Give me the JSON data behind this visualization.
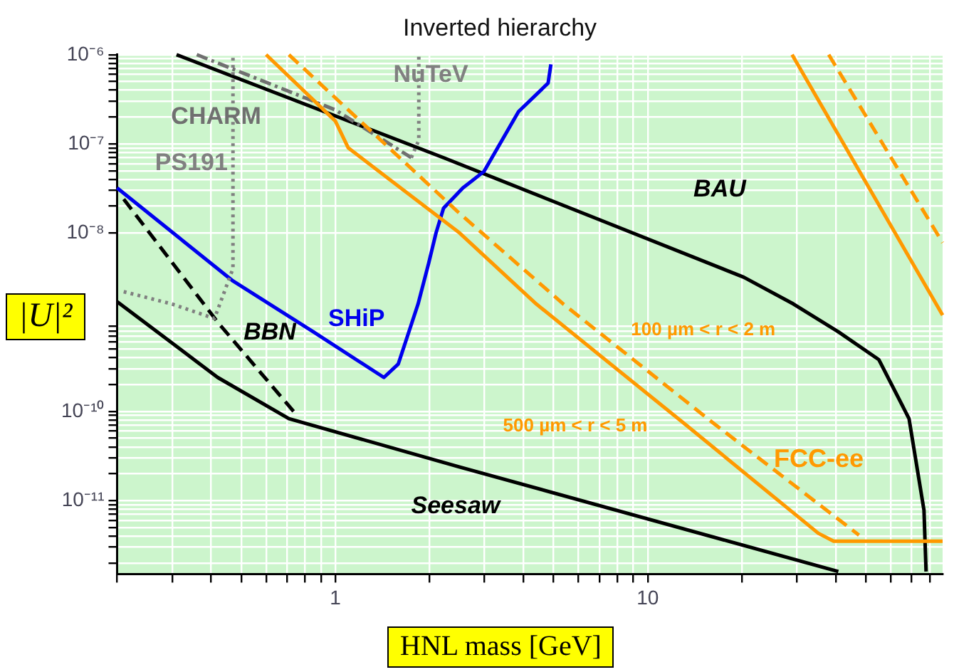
{
  "chart_data": {
    "type": "line",
    "title": "Inverted hierarchy",
    "xlabel": "HNL mass [GeV]",
    "ylabel": "|U|²",
    "log": "xy",
    "grid": true,
    "legend": false,
    "marker": "none",
    "xlim": [
      0.2,
      88
    ],
    "ylim": [
      1.5e-12,
      1e-06
    ],
    "xticks": [
      {
        "value": 0.2,
        "label": null
      },
      {
        "value": 0.3,
        "label": null
      },
      {
        "value": 0.4,
        "label": null
      },
      {
        "value": 0.5,
        "label": null
      },
      {
        "value": 0.6,
        "label": null
      },
      {
        "value": 0.7,
        "label": null
      },
      {
        "value": 0.8,
        "label": null
      },
      {
        "value": 0.9,
        "label": null
      },
      1,
      {
        "value": 2,
        "label": null
      },
      {
        "value": 3,
        "label": null
      },
      {
        "value": 4,
        "label": null
      },
      {
        "value": 5,
        "label": null
      },
      {
        "value": 6,
        "label": null
      },
      {
        "value": 7,
        "label": null
      },
      {
        "value": 8,
        "label": null
      },
      {
        "value": 9,
        "label": null
      },
      10,
      {
        "value": 20,
        "label": null
      },
      {
        "value": 30,
        "label": null
      },
      {
        "value": 40,
        "label": null
      },
      {
        "value": 50,
        "label": null
      },
      {
        "value": 60,
        "label": null
      },
      {
        "value": 70,
        "label": null
      },
      {
        "value": 80,
        "label": null
      }
    ],
    "yticks": [
      {
        "value": 2e-12,
        "label": null
      },
      {
        "value": 3e-12,
        "label": null
      },
      {
        "value": 4e-12,
        "label": null
      },
      {
        "value": 5e-12,
        "label": null
      },
      {
        "value": 6e-12,
        "label": null
      },
      {
        "value": 7e-12,
        "label": null
      },
      {
        "value": 8e-12,
        "label": null
      },
      {
        "value": 9e-12,
        "label": null
      },
      {
        "value": 1e-11,
        "label": "10⁻¹¹"
      },
      {
        "value": 2e-11,
        "label": null
      },
      {
        "value": 3e-11,
        "label": null
      },
      {
        "value": 4e-11,
        "label": null
      },
      {
        "value": 5e-11,
        "label": null
      },
      {
        "value": 6e-11,
        "label": null
      },
      {
        "value": 7e-11,
        "label": null
      },
      {
        "value": 8e-11,
        "label": null
      },
      {
        "value": 9e-11,
        "label": null
      },
      {
        "value": 1e-10,
        "label": "10⁻¹⁰"
      },
      {
        "value": 2e-10,
        "label": null
      },
      {
        "value": 3e-10,
        "label": null
      },
      {
        "value": 4e-10,
        "label": null
      },
      {
        "value": 5e-10,
        "label": null
      },
      {
        "value": 6e-10,
        "label": null
      },
      {
        "value": 7e-10,
        "label": null
      },
      {
        "value": 8e-10,
        "label": null
      },
      {
        "value": 9e-10,
        "label": null
      },
      {
        "value": 1e-08,
        "label": "10⁻⁸"
      },
      {
        "value": 2e-08,
        "label": null
      },
      {
        "value": 3e-08,
        "label": null
      },
      {
        "value": 4e-08,
        "label": null
      },
      {
        "value": 5e-08,
        "label": null
      },
      {
        "value": 6e-08,
        "label": null
      },
      {
        "value": 7e-08,
        "label": null
      },
      {
        "value": 8e-08,
        "label": null
      },
      {
        "value": 9e-08,
        "label": null
      },
      {
        "value": 1e-07,
        "label": "10⁻⁷"
      },
      {
        "value": 2e-07,
        "label": null
      },
      {
        "value": 3e-07,
        "label": null
      },
      {
        "value": 4e-07,
        "label": null
      },
      {
        "value": 5e-07,
        "label": null
      },
      {
        "value": 6e-07,
        "label": null
      },
      {
        "value": 7e-07,
        "label": null
      },
      {
        "value": 8e-07,
        "label": null
      },
      {
        "value": 9e-07,
        "label": null
      },
      {
        "value": 1e-06,
        "label": "10⁻⁶"
      }
    ],
    "series": [
      {
        "name": "BAU",
        "color": "#000000",
        "line_style": "solid",
        "x": [
          0.31,
          2.22,
          6.7,
          20.3,
          29.3,
          40.8,
          55,
          68.7,
          76.7,
          77.9
        ],
        "values": [
          1e-06,
          7e-08,
          1.5e-08,
          3.2e-09,
          1.6e-09,
          7.8e-10,
          3.8e-10,
          8.3e-11,
          7.8e-12,
          1.6e-12
        ]
      },
      {
        "name": "Seesaw",
        "color": "#000000",
        "line_style": "solid",
        "x": [
          0.2,
          0.42,
          0.71,
          2.48,
          40.8
        ],
        "values": [
          1.7e-09,
          2.4e-10,
          8.3e-11,
          2.4e-11,
          1.6e-12
        ]
      },
      {
        "name": "BBN",
        "color": "#000000",
        "line_style": "dashed",
        "x": [
          0.21,
          0.42,
          0.76
        ],
        "values": [
          2.4e-08,
          1e-09,
          8.7e-11
        ]
      },
      {
        "name": "SHiP",
        "color": "#0000ee",
        "line_style": "solid",
        "x": [
          0.2,
          0.47,
          0.85,
          1.43,
          1.59,
          1.84,
          1.99,
          2.1,
          2.22,
          2.56,
          2.99,
          3.86,
          4.8,
          4.9
        ],
        "values": [
          3.2e-08,
          2.9e-09,
          7.8e-10,
          2.4e-10,
          3.4e-10,
          1.6e-09,
          4.6e-09,
          1e-08,
          1.9e-08,
          3.2e-08,
          4.9e-08,
          2.3e-07,
          4.8e-07,
          7.8e-07
        ]
      },
      {
        "name": "PS191",
        "color": "#808080",
        "line_style": "dotted",
        "x": [
          0.21,
          0.3,
          0.41,
          0.47,
          0.47
        ],
        "values": [
          2.2e-09,
          1.6e-09,
          1.1e-09,
          4e-09,
          1e-06
        ]
      },
      {
        "name": "CHARM",
        "color": "#707070",
        "line_style": "dashdot",
        "x": [
          0.36,
          1.0,
          1.75
        ],
        "values": [
          1e-06,
          2.4e-07,
          7e-08
        ]
      },
      {
        "name": "NuTeV",
        "color": "#808080",
        "line_style": "dotted",
        "x": [
          1.75,
          1.85,
          1.85
        ],
        "values": [
          7e-08,
          1.1e-07,
          1e-06
        ]
      },
      {
        "name": "500 µm < r < 5 m",
        "color": "#ff9900",
        "line_style": "solid",
        "x": [
          0.6,
          1.0,
          1.1,
          2.5,
          4.4,
          13.1,
          35.2,
          39.4,
          88
        ],
        "values": [
          1e-06,
          1.8e-07,
          9e-08,
          1e-08,
          1.6e-09,
          7.3e-11,
          4.3e-12,
          3.5e-12,
          3.5e-12
        ]
      },
      {
        "name": "100 µm < r < 2 m",
        "color": "#ff9900",
        "line_style": "dashed",
        "x": [
          0.71,
          2.48,
          5.37,
          16.3,
          47.5
        ],
        "values": [
          1e-06,
          1.7e-08,
          1.6e-09,
          7.3e-11,
          4.1e-12
        ]
      },
      {
        "color": "#ff9900",
        "line_style": "solid",
        "x": [
          29,
          88
        ],
        "values": [
          1e-06,
          1.2e-09
        ]
      },
      {
        "color": "#ff9900",
        "line_style": "dashed",
        "x": [
          38,
          88
        ],
        "values": [
          1e-06,
          7.8e-09
        ]
      }
    ],
    "annotations": [
      "FCC-ee"
    ]
  }
}
